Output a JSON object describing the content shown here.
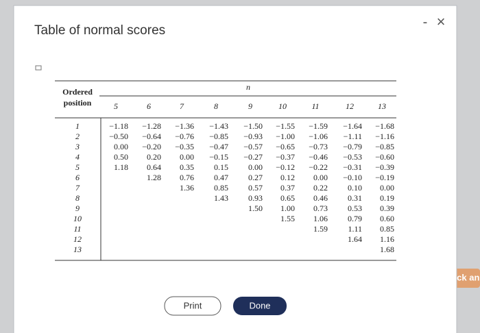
{
  "dialog": {
    "title": "Table of normal scores",
    "close": "×",
    "minimize": "-"
  },
  "table": {
    "row_header": "Ordered position",
    "column_group": "n",
    "columns": [
      {
        "n": "5",
        "values": [
          "−1.18",
          "−0.50",
          "0.00",
          "0.50",
          "1.18"
        ]
      },
      {
        "n": "6",
        "values": [
          "−1.28",
          "−0.64",
          "−0.20",
          "0.20",
          "0.64",
          "1.28"
        ]
      },
      {
        "n": "7",
        "values": [
          "−1.36",
          "−0.76",
          "−0.35",
          "0.00",
          "0.35",
          "0.76",
          "1.36"
        ]
      },
      {
        "n": "8",
        "values": [
          "−1.43",
          "−0.85",
          "−0.47",
          "−0.15",
          "0.15",
          "0.47",
          "0.85",
          "1.43"
        ]
      },
      {
        "n": "9",
        "values": [
          "−1.50",
          "−0.93",
          "−0.57",
          "−0.27",
          "0.00",
          "0.27",
          "0.57",
          "0.93",
          "1.50"
        ]
      },
      {
        "n": "10",
        "values": [
          "−1.55",
          "−1.00",
          "−0.65",
          "−0.37",
          "−0.12",
          "0.12",
          "0.37",
          "0.65",
          "1.00",
          "1.55"
        ]
      },
      {
        "n": "11",
        "values": [
          "−1.59",
          "−1.06",
          "−0.73",
          "−0.46",
          "−0.22",
          "0.00",
          "0.22",
          "0.46",
          "0.73",
          "1.06",
          "1.59"
        ]
      },
      {
        "n": "12",
        "values": [
          "−1.64",
          "−1.11",
          "−0.79",
          "−0.53",
          "−0.31",
          "−0.10",
          "0.10",
          "0.31",
          "0.53",
          "0.79",
          "1.11",
          "1.64"
        ]
      },
      {
        "n": "13",
        "values": [
          "−1.68",
          "−1.16",
          "−0.85",
          "−0.60",
          "−0.39",
          "−0.19",
          "0.00",
          "0.19",
          "0.39",
          "0.60",
          "0.85",
          "1.16",
          "1.68"
        ]
      }
    ],
    "positions": [
      "1",
      "2",
      "3",
      "4",
      "5",
      "6",
      "7",
      "8",
      "9",
      "10",
      "11",
      "12",
      "13"
    ]
  },
  "buttons": {
    "print": "Print",
    "done": "Done"
  },
  "background": {
    "right_button": "heck an"
  }
}
